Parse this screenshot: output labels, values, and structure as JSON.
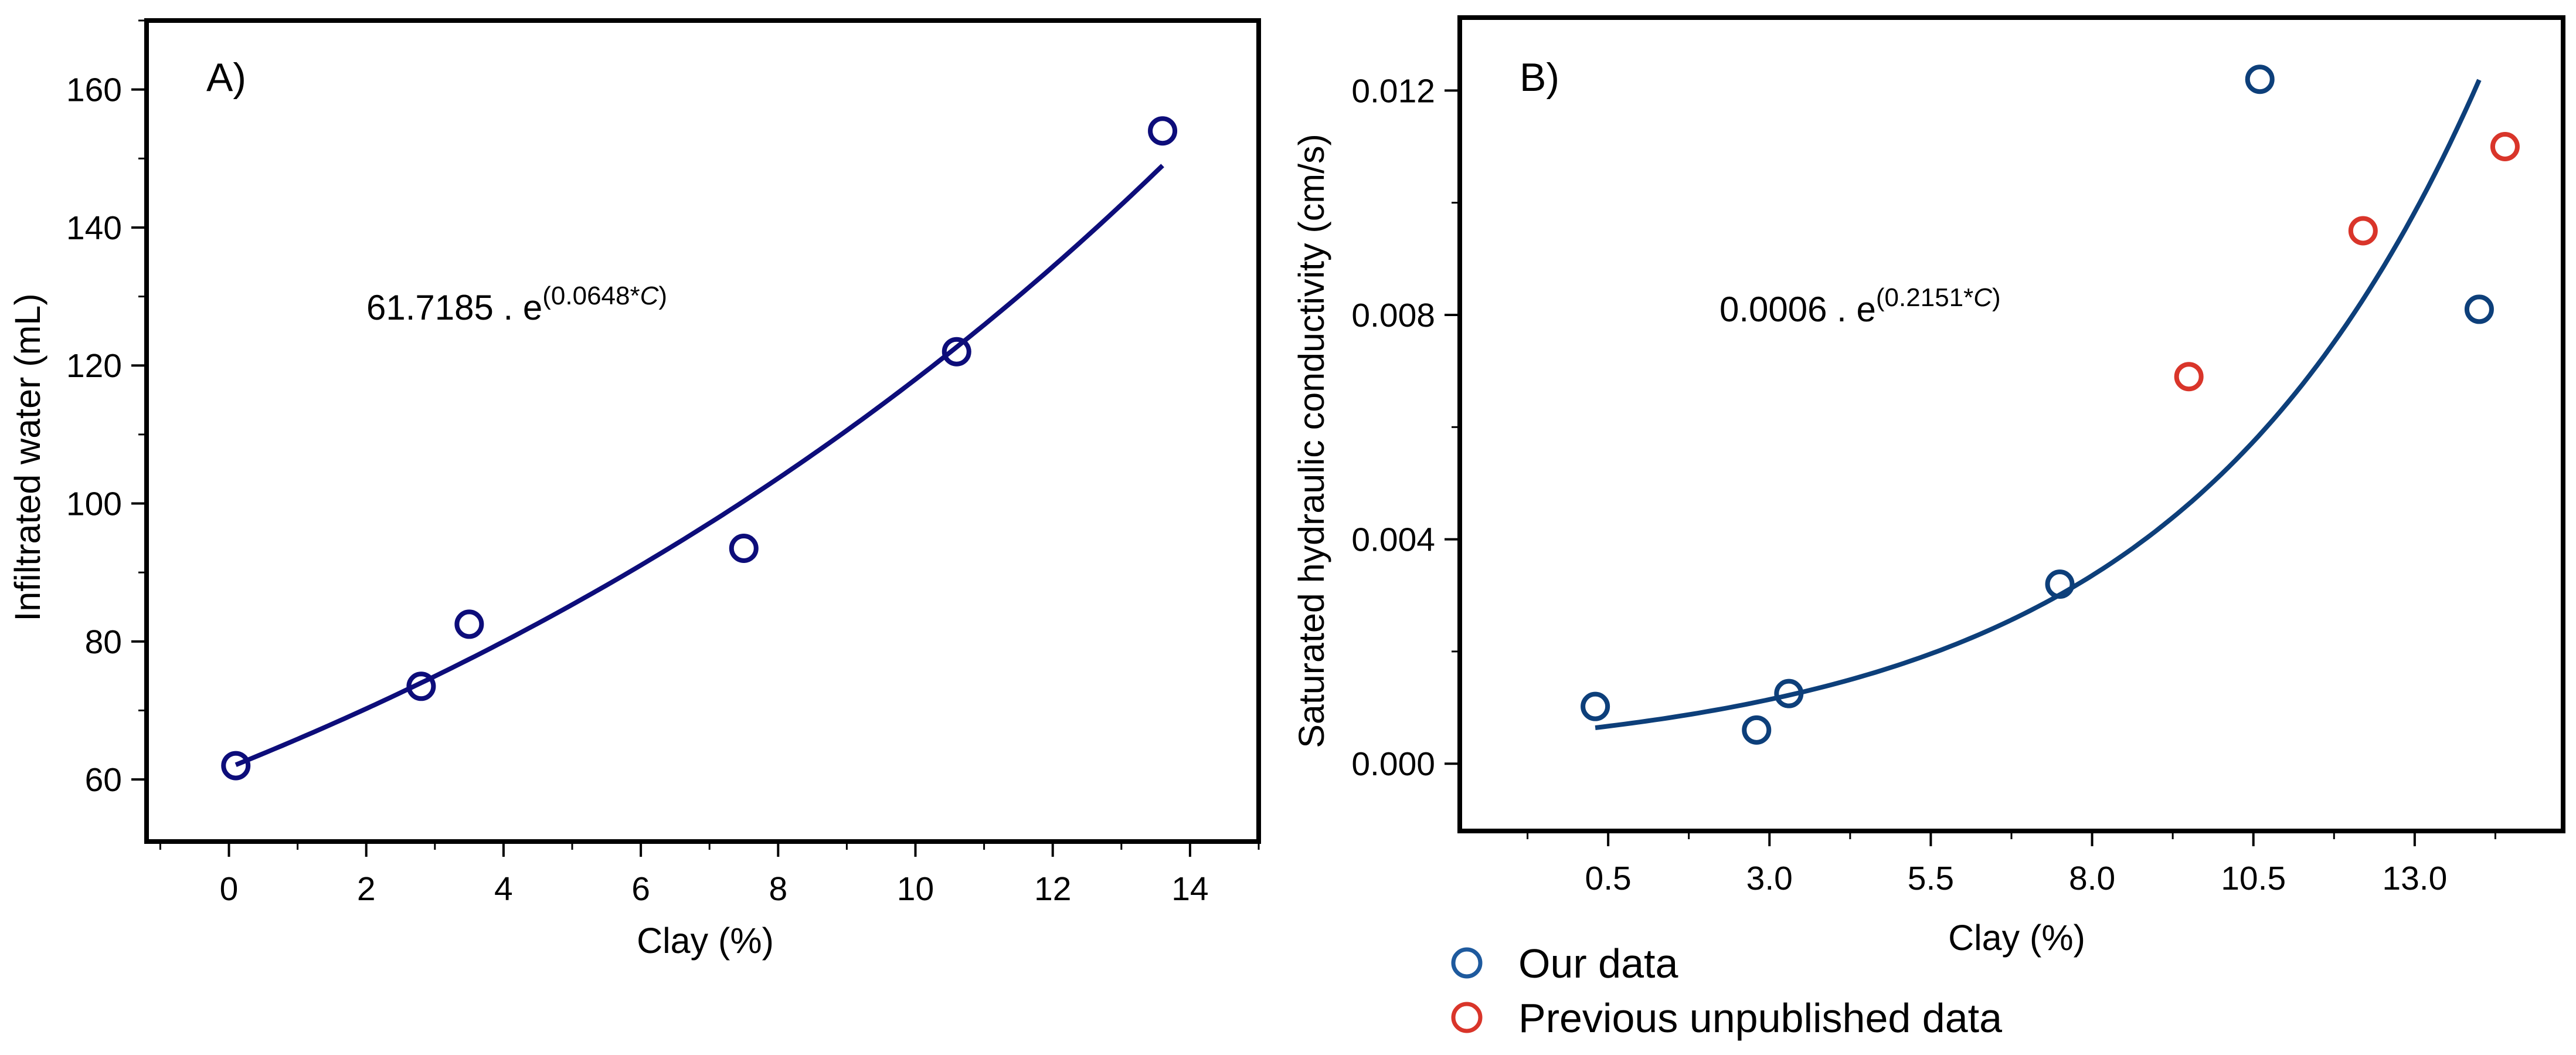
{
  "chart_data": [
    {
      "type": "scatter",
      "panel_label": "A)",
      "xlabel": "Clay (%)",
      "ylabel": "Infiltrated water (mL)",
      "xlim": [
        -1.2,
        15.0
      ],
      "ylim": [
        51,
        170
      ],
      "x_ticks": [
        0,
        2,
        4,
        6,
        8,
        10,
        12,
        14
      ],
      "x_tick_labels": [
        "0",
        "2",
        "4",
        "6",
        "8",
        "10",
        "12",
        "14"
      ],
      "y_ticks": [
        60,
        80,
        100,
        120,
        140,
        160
      ],
      "y_tick_labels": [
        "60",
        "80",
        "100",
        "120",
        "140",
        "160"
      ],
      "grid": false,
      "equation": {
        "coefficient": "61.7185 . e",
        "exponent": "(0.0648*",
        "variable": "C",
        "close": ")"
      },
      "fit": {
        "model": "exponential",
        "a": 61.7185,
        "b": 0.0648,
        "x_range": [
          0.1,
          13.6
        ],
        "color": "#0d0d7a"
      },
      "series": [
        {
          "name": "Infiltrated water",
          "color": "#0d0d7a",
          "points": [
            {
              "x": 0.1,
              "y": 62
            },
            {
              "x": 2.8,
              "y": 73.5
            },
            {
              "x": 3.5,
              "y": 82.5
            },
            {
              "x": 7.5,
              "y": 93.5
            },
            {
              "x": 10.6,
              "y": 122
            },
            {
              "x": 13.6,
              "y": 154
            }
          ]
        }
      ]
    },
    {
      "type": "scatter",
      "panel_label": "B)",
      "xlabel": "Clay (%)",
      "ylabel": "Saturated hydraulic conductivity (cm/s)",
      "xlim": [
        -1.8,
        15.3
      ],
      "ylim": [
        -0.0012,
        0.0133
      ],
      "x_ticks": [
        0.5,
        3.0,
        5.5,
        8.0,
        10.5,
        13.0
      ],
      "x_tick_labels": [
        "0.5",
        "3.0",
        "5.5",
        "8.0",
        "10.5",
        "13.0"
      ],
      "y_ticks": [
        0.0,
        0.004,
        0.008,
        0.012
      ],
      "y_tick_labels": [
        "0.000",
        "0.004",
        "0.008",
        "0.012"
      ],
      "grid": false,
      "equation": {
        "coefficient": "0.0006 . e",
        "exponent": "(0.2151*",
        "variable": "C",
        "close": ")"
      },
      "fit": {
        "model": "exponential",
        "a": 0.0006,
        "b": 0.2151,
        "x_range": [
          0.3,
          14.0
        ],
        "color": "#0d3f7a"
      },
      "series": [
        {
          "name": "Our data",
          "color": "#0d3f7a",
          "points": [
            {
              "x": 0.3,
              "y": 0.00102
            },
            {
              "x": 2.8,
              "y": 0.0006
            },
            {
              "x": 3.3,
              "y": 0.00125
            },
            {
              "x": 7.5,
              "y": 0.0032
            },
            {
              "x": 10.6,
              "y": 0.0122
            },
            {
              "x": 14.0,
              "y": 0.0081
            }
          ]
        },
        {
          "name": "Previous unpublished data",
          "color": "#d9352a",
          "points": [
            {
              "x": 9.5,
              "y": 0.0069
            },
            {
              "x": 12.2,
              "y": 0.0095
            },
            {
              "x": 14.4,
              "y": 0.011
            }
          ]
        }
      ]
    }
  ],
  "legend": [
    {
      "label": "Our data",
      "color": "#1e5a9e"
    },
    {
      "label": "Previous unpublished data",
      "color": "#d9352a"
    }
  ]
}
